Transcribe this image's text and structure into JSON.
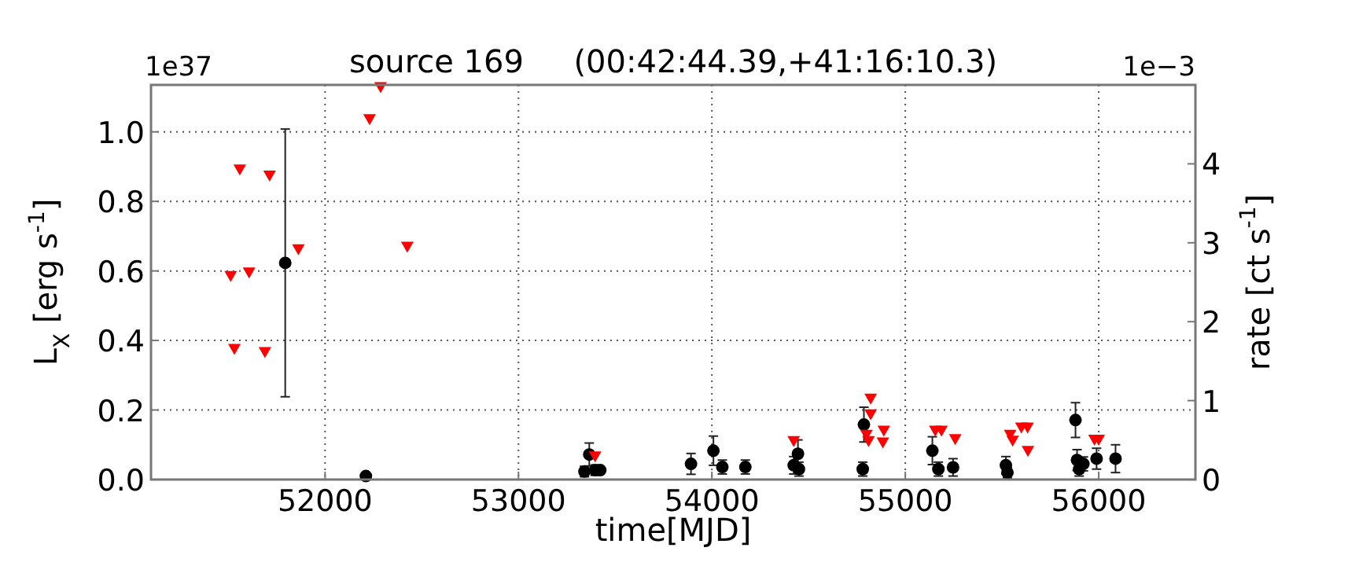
{
  "chart_data": {
    "type": "scatter",
    "title": "source 169     (00:42:44.39,+41:16:10.3)",
    "xlabel": "time[MJD]",
    "ylabel": "L$_{X}$ [erg s$^{-1}$]",
    "y2label": "rate [ct s$^{-1}$]",
    "annotations": [
      "1e37",
      "1e−3"
    ],
    "xlim": [
      51100,
      56500
    ],
    "xticks": [
      52000,
      53000,
      54000,
      55000,
      56000
    ],
    "ylim": [
      0,
      1.135
    ],
    "yticks": [
      {
        "value": 0,
        "label": "0.0"
      },
      {
        "value": 0.2,
        "label": "0.2"
      },
      {
        "value": 0.4,
        "label": "0.4"
      },
      {
        "value": 0.6,
        "label": "0.6"
      },
      {
        "value": 0.8,
        "label": "0.8"
      },
      {
        "value": 1,
        "label": "1.0"
      }
    ],
    "y2lim": [
      0,
      5
    ],
    "y2ticks": [
      0,
      1,
      2,
      3,
      4
    ],
    "grid": true,
    "series": [
      {
        "color": "#000000",
        "marker": "circle",
        "x": [
          51794,
          52211,
          53341,
          53366,
          53396,
          53423,
          53892,
          54008,
          54054,
          54173,
          54423,
          54445,
          54450,
          54780,
          54786,
          55140,
          55171,
          55247,
          55520,
          55528,
          55880,
          55888,
          55899,
          55921,
          55989,
          56087
        ],
        "values": [
          0.623,
          0.01,
          0.023,
          0.072,
          0.027,
          0.027,
          0.045,
          0.083,
          0.036,
          0.036,
          0.041,
          0.074,
          0.03,
          0.03,
          0.158,
          0.083,
          0.03,
          0.035,
          0.041,
          0.02,
          0.171,
          0.056,
          0.03,
          0.045,
          0.06,
          0.06
        ],
        "errors": [
          0.385,
          null,
          0.015,
          0.033,
          0.015,
          null,
          0.03,
          0.042,
          0.02,
          0.02,
          0.025,
          0.04,
          0.02,
          0.02,
          0.05,
          0.04,
          0.02,
          0.025,
          0.025,
          0.015,
          0.05,
          0.03,
          0.02,
          0.02,
          0.03,
          0.04
        ]
      },
      {
        "color": "#ff0000",
        "marker": "triangle",
        "x": [
          51512,
          51531,
          51559,
          51607,
          51689,
          51713,
          51862,
          52230,
          52287,
          52425,
          53396,
          54423,
          54799,
          54810,
          54821,
          54821,
          54884,
          54889,
          55155,
          55187,
          55258,
          55542,
          55555,
          55600,
          55632,
          55634,
          55978,
          56000
        ],
        "values": [
          0.584,
          0.374,
          0.89,
          0.594,
          0.365,
          0.873,
          0.661,
          1.035,
          1.127,
          0.668,
          0.065,
          0.109,
          0.127,
          0.109,
          0.231,
          0.186,
          0.105,
          0.139,
          0.139,
          0.139,
          0.115,
          0.127,
          0.11,
          0.148,
          0.148,
          0.081,
          0.113,
          0.113
        ]
      }
    ]
  }
}
